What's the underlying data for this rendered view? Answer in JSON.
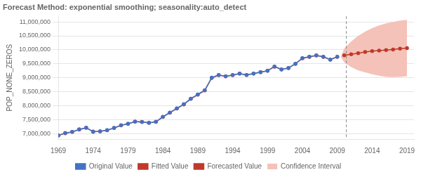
{
  "chart_data": {
    "type": "line",
    "title": "Forecast Method: exponential smoothing; seasonality:auto_detect",
    "y_label": "POP_NONE_ZEROS",
    "xlim": [
      1969,
      2020
    ],
    "xticks": [
      1969,
      1974,
      1979,
      1984,
      1989,
      1994,
      1999,
      2004,
      2009,
      2014,
      2019
    ],
    "ylim": [
      6800000,
      11200000
    ],
    "yticks": [
      {
        "value": 7000000,
        "label": "7,000,000"
      },
      {
        "value": 7500000,
        "label": "7,500,000"
      },
      {
        "value": 8000000,
        "label": "8,000,000"
      },
      {
        "value": 8500000,
        "label": "8,500,000"
      },
      {
        "value": 9000000,
        "label": "9,000,000"
      },
      {
        "value": 9500000,
        "label": "9,500,000"
      },
      {
        "value": 10000000,
        "label": "10,000,000"
      },
      {
        "value": 10500000,
        "label": "10,500,000"
      },
      {
        "value": 11000000,
        "label": "11,000,000"
      }
    ],
    "grid": "y",
    "legend": "bottom",
    "vertical_line_x": 2010.3,
    "series": [
      {
        "name": "Original Value",
        "type": "line",
        "color": "#4472c4",
        "marker": "o",
        "x": [
          1969,
          1970,
          1971,
          1972,
          1973,
          1974,
          1975,
          1976,
          1977,
          1978,
          1979,
          1980,
          1981,
          1982,
          1983,
          1984,
          1985,
          1986,
          1987,
          1988,
          1989,
          1990,
          1991,
          1992,
          1993,
          1994,
          1995,
          1996,
          1997,
          1998,
          1999,
          2000,
          2001,
          2002,
          2003,
          2004,
          2005,
          2006,
          2007,
          2008,
          2009
        ],
        "values": [
          6927000,
          7020000,
          7060000,
          7150000,
          7210000,
          7060000,
          7080000,
          7120000,
          7200000,
          7300000,
          7350000,
          7430000,
          7410000,
          7380000,
          7420000,
          7600000,
          7750000,
          7900000,
          8050000,
          8250000,
          8400000,
          8550000,
          9000000,
          9100000,
          9050000,
          9100000,
          9150000,
          9100000,
          9150000,
          9200000,
          9250000,
          9400000,
          9300000,
          9350000,
          9500000,
          9700000,
          9750000,
          9800000,
          9750000,
          9650000,
          9750000
        ]
      },
      {
        "name": "Fitted Value",
        "type": "line",
        "color": "#c0392b",
        "marker": "o",
        "x": [
          1969,
          1970,
          1971,
          1972,
          1973,
          1974,
          1975,
          1976,
          1977,
          1978,
          1979,
          1980,
          1981,
          1982,
          1983,
          1984,
          1985,
          1986,
          1987,
          1988,
          1989,
          1990,
          1991,
          1992,
          1993,
          1994,
          1995,
          1996,
          1997,
          1998,
          1999,
          2000,
          2001,
          2002,
          2003,
          2004,
          2005,
          2006,
          2007,
          2008,
          2009
        ],
        "values": [
          6930000,
          7010000,
          7055000,
          7140000,
          7200000,
          7070000,
          7075000,
          7115000,
          7195000,
          7290000,
          7345000,
          7425000,
          7415000,
          7385000,
          7415000,
          7590000,
          7745000,
          7895000,
          8040000,
          8240000,
          8390000,
          8540000,
          8990000,
          9090000,
          9045000,
          9090000,
          9145000,
          9095000,
          9145000,
          9195000,
          9245000,
          9395000,
          9295000,
          9345000,
          9495000,
          9695000,
          9745000,
          9795000,
          9745000,
          9645000,
          9745000
        ]
      },
      {
        "name": "Confidence Interval",
        "type": "area",
        "color": "#f4c2b8",
        "x": [
          2009.5,
          2010,
          2011,
          2012,
          2013,
          2014,
          2015,
          2016,
          2017,
          2018,
          2019
        ],
        "upper": [
          9750000,
          10050000,
          10300000,
          10500000,
          10650000,
          10780000,
          10870000,
          10950000,
          11000000,
          11050000,
          11070000
        ],
        "lower": [
          9750000,
          9550000,
          9380000,
          9260000,
          9190000,
          9120000,
          9070000,
          9030000,
          9020000,
          9030000,
          9050000
        ]
      },
      {
        "name": "Forecasted Value",
        "type": "line",
        "color": "#c0392b",
        "marker": "o",
        "x": [
          2010,
          2011,
          2012,
          2013,
          2014,
          2015,
          2016,
          2017,
          2018,
          2019
        ],
        "values": [
          9800000,
          9840000,
          9880000,
          9920000,
          9950000,
          9970000,
          9990000,
          10010000,
          10040000,
          10060000
        ]
      }
    ]
  }
}
